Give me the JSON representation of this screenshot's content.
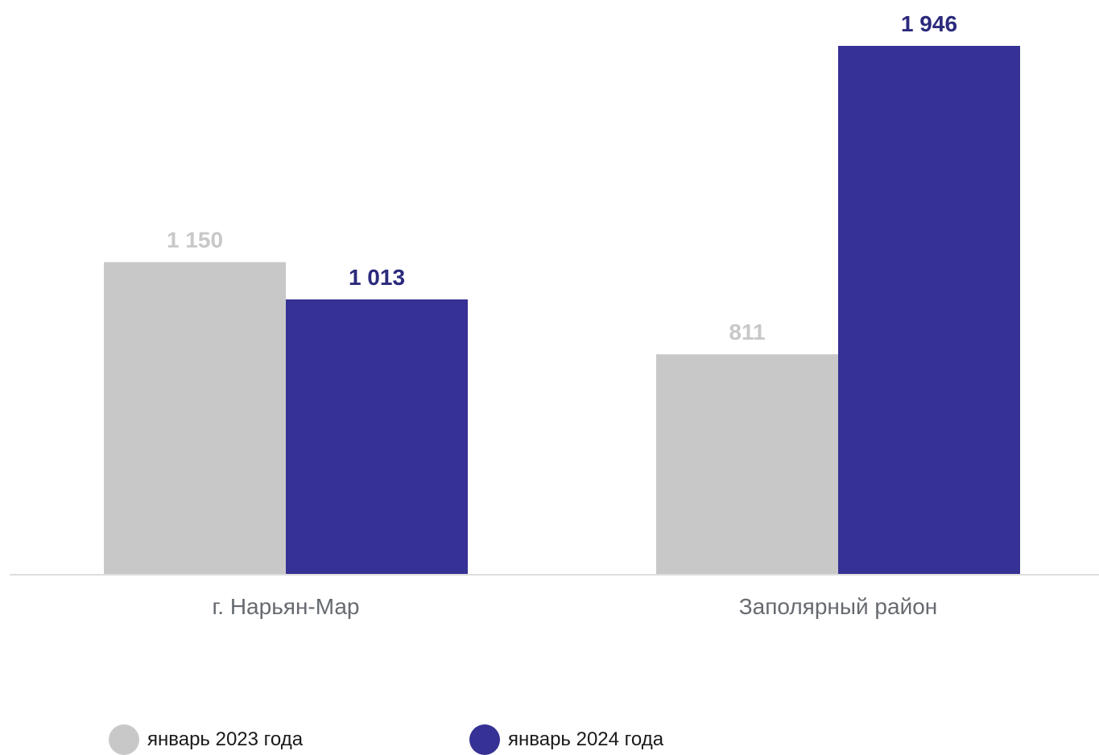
{
  "chart_data": {
    "type": "bar",
    "categories": [
      "г. Нарьян-Мар",
      "Заполярный район"
    ],
    "series": [
      {
        "name": "январь 2023 года",
        "values": [
          1150,
          811
        ],
        "value_labels": [
          "1 150",
          "811"
        ],
        "color": "#c8c8c8",
        "label_color": "#c8c8c8"
      },
      {
        "name": "январь 2024 года",
        "values": [
          1013,
          1946
        ],
        "value_labels": [
          "1 013",
          "1 946"
        ],
        "color": "#363194",
        "label_color": "#2b2a7c"
      }
    ],
    "ylim": [
      0,
      1946
    ],
    "grid": false,
    "legend_position": "bottom-left",
    "axis_color": "#dddddd",
    "category_label_color": "#666a70"
  }
}
